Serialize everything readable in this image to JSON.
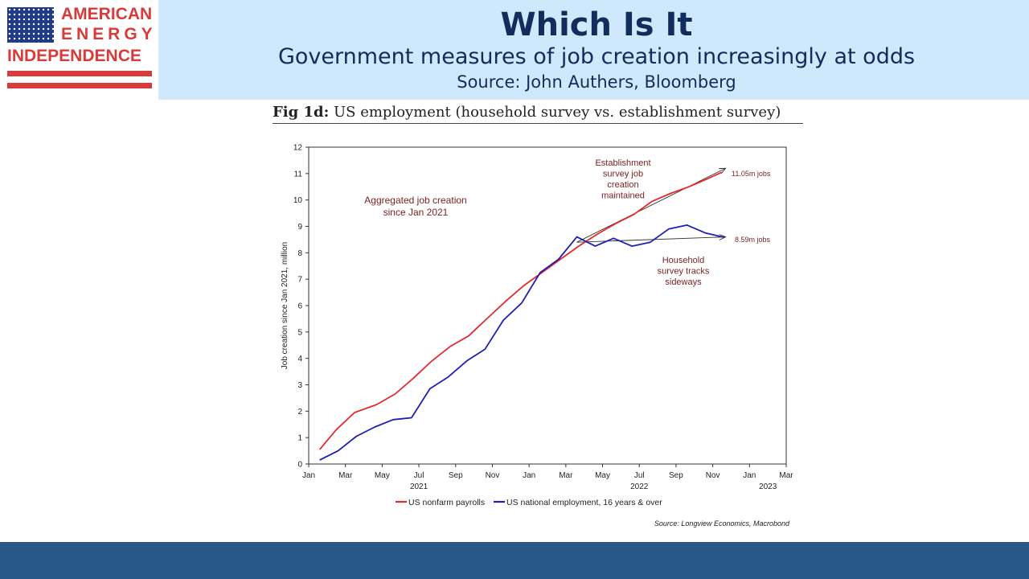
{
  "header": {
    "logo": {
      "line1": "AMERICAN",
      "line2": "ENERGY",
      "line3": "INDEPENDENCE"
    },
    "title": "Which Is It",
    "subtitle": "Government measures of job creation increasingly at odds",
    "source": "Source: John Authers, Bloomberg"
  },
  "figure": {
    "label": "Fig 1d:",
    "caption": "US employment (household survey vs. establishment survey)"
  },
  "colors": {
    "header_band": "#cfe8fb",
    "title_text": "#122c5b",
    "payrolls": "#e32b2b",
    "household": "#1f1fb4",
    "annotation": "#7a1f1f",
    "footer": "#285887"
  },
  "chart_data": {
    "type": "line",
    "xlabel": "",
    "ylabel": "Job creation since Jan 2021, million",
    "ylim": [
      0,
      12
    ],
    "yticks": [
      0,
      1,
      2,
      3,
      4,
      5,
      6,
      7,
      8,
      9,
      10,
      11,
      12
    ],
    "xticks": [
      {
        "m": 0,
        "label": "Jan"
      },
      {
        "m": 2,
        "label": "Mar"
      },
      {
        "m": 4,
        "label": "May"
      },
      {
        "m": 6,
        "label": "Jul"
      },
      {
        "m": 8,
        "label": "Sep"
      },
      {
        "m": 10,
        "label": "Nov"
      },
      {
        "m": 12,
        "label": "Jan"
      },
      {
        "m": 14,
        "label": "Mar"
      },
      {
        "m": 16,
        "label": "May"
      },
      {
        "m": 18,
        "label": "Jul"
      },
      {
        "m": 20,
        "label": "Sep"
      },
      {
        "m": 22,
        "label": "Nov"
      },
      {
        "m": 24,
        "label": "Jan"
      },
      {
        "m": 26,
        "label": "Mar"
      }
    ],
    "year_labels": [
      {
        "m": 6,
        "label": "2021"
      },
      {
        "m": 18,
        "label": "2022"
      },
      {
        "m": 25,
        "label": "2023"
      }
    ],
    "grid": false,
    "legend_position": "bottom",
    "series": [
      {
        "name": "US nonfarm payrolls",
        "color": "#e32b2b",
        "points": [
          [
            0.6,
            0.55
          ],
          [
            1.5,
            1.3
          ],
          [
            2.5,
            1.95
          ],
          [
            3.7,
            2.25
          ],
          [
            4.7,
            2.65
          ],
          [
            5.7,
            3.25
          ],
          [
            6.7,
            3.9
          ],
          [
            7.7,
            4.45
          ],
          [
            8.7,
            4.85
          ],
          [
            9.7,
            5.5
          ],
          [
            10.7,
            6.15
          ],
          [
            11.7,
            6.75
          ],
          [
            12.7,
            7.25
          ],
          [
            13.7,
            7.75
          ],
          [
            14.7,
            8.25
          ],
          [
            15.7,
            8.7
          ],
          [
            16.7,
            9.1
          ],
          [
            17.7,
            9.45
          ],
          [
            18.7,
            9.95
          ],
          [
            19.7,
            10.25
          ],
          [
            20.7,
            10.5
          ],
          [
            21.7,
            10.8
          ],
          [
            22.5,
            11.05
          ]
        ]
      },
      {
        "name": "US national employment, 16 years & over",
        "color": "#1f1fb4",
        "points": [
          [
            0.6,
            0.15
          ],
          [
            1.6,
            0.5
          ],
          [
            2.6,
            1.05
          ],
          [
            3.6,
            1.4
          ],
          [
            4.6,
            1.68
          ],
          [
            5.6,
            1.75
          ],
          [
            6.6,
            2.85
          ],
          [
            7.6,
            3.3
          ],
          [
            8.6,
            3.9
          ],
          [
            9.6,
            4.35
          ],
          [
            10.6,
            5.45
          ],
          [
            11.6,
            6.1
          ],
          [
            12.6,
            7.25
          ],
          [
            13.6,
            7.75
          ],
          [
            14.6,
            8.6
          ],
          [
            15.6,
            8.25
          ],
          [
            16.6,
            8.55
          ],
          [
            17.6,
            8.25
          ],
          [
            18.6,
            8.4
          ],
          [
            19.6,
            8.9
          ],
          [
            20.6,
            9.05
          ],
          [
            21.6,
            8.75
          ],
          [
            22.6,
            8.59
          ]
        ]
      }
    ],
    "trend_arrows": [
      {
        "from": [
          14.6,
          8.4
        ],
        "to": [
          22.7,
          11.2
        ]
      },
      {
        "from": [
          14.6,
          8.4
        ],
        "to": [
          22.7,
          8.6
        ]
      }
    ],
    "annotations": {
      "aggregated": [
        "Aggregated job creation",
        "since Jan 2021"
      ],
      "establishment": [
        "Establishment",
        "survey job",
        "creation",
        "maintained"
      ],
      "household": [
        "Household",
        "survey tracks",
        "sideways"
      ],
      "end_payrolls": "11.05m jobs",
      "end_household": "8.59m jobs"
    },
    "source": "Source: Longview Economics, Macrobond"
  }
}
